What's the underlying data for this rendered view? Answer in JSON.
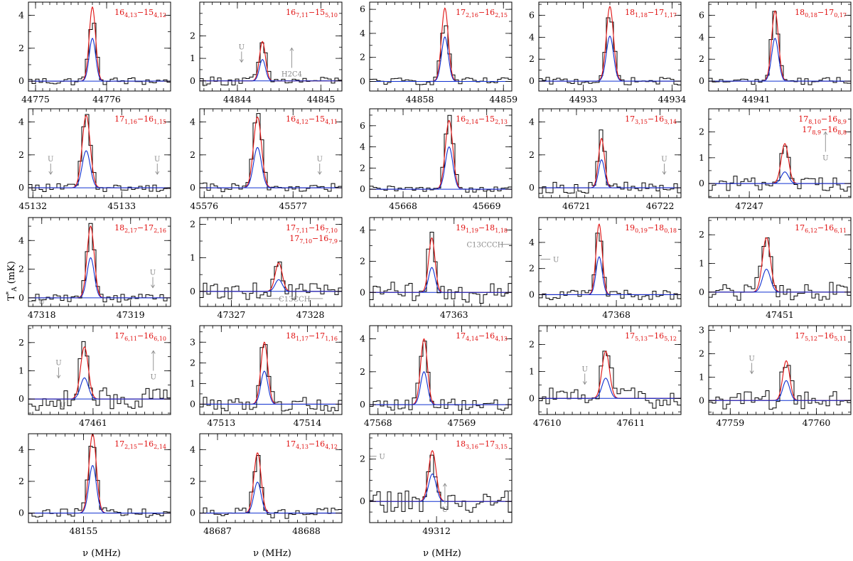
{
  "chart_data": {
    "type": "line",
    "ylabel": "T*A (mK)",
    "ylabel_main": "T",
    "ylabel_sup": "*",
    "ylabel_sub": "A",
    "ylabel_unit": " (mK)",
    "xlabel": "ν (MHz)",
    "series_colors": {
      "observed": "#000000",
      "model_red": "#e01010",
      "model_blue": "#1030d0",
      "annotation": "#8a8a8a"
    },
    "panels": [
      {
        "label": "16 4,13 − 15 4,12",
        "rows": [
          "16|4,13|−15|4,12"
        ],
        "center": 44775.8,
        "xmin": 44774.9,
        "xmax": 44776.9,
        "xticks": [
          44775,
          44776
        ],
        "ylim": [
          -0.6,
          4.8
        ],
        "yticks": [
          0,
          2,
          4
        ],
        "peak_red": 4.5,
        "peak_blue": 2.6,
        "peak_obs": 3.8,
        "width": 0.05,
        "noise": 0.25,
        "annotations": []
      },
      {
        "label": "16 7,11 − 15 5,10",
        "rows": [
          "16|7,11|−15|5,10"
        ],
        "center": 44844.3,
        "xmin": 44843.55,
        "xmax": 44845.25,
        "xticks": [
          44844,
          44845
        ],
        "ylim": [
          -0.45,
          3.5
        ],
        "yticks": [
          0,
          1,
          2
        ],
        "peak_red": 1.75,
        "peak_blue": 0.95,
        "peak_obs": 1.7,
        "width": 0.04,
        "noise": 0.2,
        "annotations": [
          {
            "text": "U",
            "x": 44844.05,
            "y": 1.4,
            "dir": "down"
          },
          {
            "text": "U",
            "x": 44843.6,
            "y": -0.25,
            "dir": "none"
          },
          {
            "text": "H2C4",
            "x": 44844.65,
            "y": 0.2,
            "dir": "up"
          }
        ]
      },
      {
        "label": "17 2,16 − 16 2,15",
        "rows": [
          "17|2,16|−16|2,15"
        ],
        "center": 44858.3,
        "xmin": 44857.4,
        "xmax": 44859.1,
        "xticks": [
          44858,
          44859
        ],
        "ylim": [
          -0.8,
          6.6
        ],
        "yticks": [
          0,
          2,
          4,
          6
        ],
        "peak_red": 6.1,
        "peak_blue": 3.7,
        "peak_obs": 5.0,
        "width": 0.045,
        "noise": 0.3,
        "annotations": []
      },
      {
        "label": "18 1,18 − 17 1,17",
        "rows": [
          "18|1,18|−17|1,17"
        ],
        "center": 44933.3,
        "xmin": 44932.5,
        "xmax": 44934.1,
        "xticks": [
          44933,
          44934
        ],
        "ylim": [
          -0.9,
          7.2
        ],
        "yticks": [
          0,
          2,
          4,
          6
        ],
        "peak_red": 6.8,
        "peak_blue": 4.1,
        "peak_obs": 6.0,
        "width": 0.045,
        "noise": 0.35,
        "annotations": []
      },
      {
        "label": "18 0,18 − 17 0,17",
        "rows": [
          "18|0,18|−17|0,17"
        ],
        "center": 44941.2,
        "xmin": 44940.5,
        "xmax": 44942.0,
        "xticks": [
          44941
        ],
        "ylim": [
          -0.9,
          7.2
        ],
        "yticks": [
          0,
          2,
          4,
          6
        ],
        "peak_red": 6.4,
        "peak_blue": 3.9,
        "peak_obs": 6.3,
        "width": 0.04,
        "noise": 0.35,
        "annotations": []
      },
      {
        "label": "17 1,16 − 16 1,15",
        "rows": [
          "17|1,16|−16|1,15"
        ],
        "center": 45132.6,
        "xmin": 45131.95,
        "xmax": 45133.55,
        "xticks": [
          45132,
          45133
        ],
        "ylim": [
          -0.6,
          4.8
        ],
        "yticks": [
          0,
          2,
          4
        ],
        "peak_red": 4.4,
        "peak_blue": 2.25,
        "peak_obs": 4.3,
        "width": 0.05,
        "noise": 0.25,
        "annotations": [
          {
            "text": "U",
            "x": 45132.2,
            "y": 1.6,
            "dir": "down"
          },
          {
            "text": "U",
            "x": 45133.4,
            "y": 1.6,
            "dir": "down"
          }
        ]
      },
      {
        "label": "16 4,12 − 15 4,11",
        "rows": [
          "16|4,12|−15|4,11"
        ],
        "center": 45576.6,
        "xmin": 45575.95,
        "xmax": 45577.55,
        "xticks": [
          45576,
          45577
        ],
        "ylim": [
          -0.6,
          4.8
        ],
        "yticks": [
          0,
          2,
          4
        ],
        "peak_red": 4.3,
        "peak_blue": 2.45,
        "peak_obs": 4.4,
        "width": 0.05,
        "noise": 0.3,
        "annotations": [
          {
            "text": "U",
            "x": 45577.3,
            "y": 1.6,
            "dir": "down"
          }
        ]
      },
      {
        "label": "16 2,14 − 15 2,13",
        "rows": [
          "16|2,14|−15|2,13"
        ],
        "center": 45668.55,
        "xmin": 45667.6,
        "xmax": 45669.3,
        "xticks": [
          45668,
          45669
        ],
        "ylim": [
          -0.8,
          7.6
        ],
        "yticks": [
          0,
          2,
          4,
          6
        ],
        "peak_red": 6.5,
        "peak_blue": 4.0,
        "peak_obs": 7.0,
        "width": 0.05,
        "noise": 0.3,
        "annotations": []
      },
      {
        "label": "17 3,15 − 16 3,14",
        "rows": [
          "17|3,15|−16|3,14"
        ],
        "center": 46721.3,
        "xmin": 46720.55,
        "xmax": 46722.25,
        "xticks": [
          46721,
          46722
        ],
        "ylim": [
          -0.6,
          4.8
        ],
        "yticks": [
          0,
          2,
          4
        ],
        "peak_red": 3.0,
        "peak_blue": 1.7,
        "peak_obs": 3.3,
        "width": 0.04,
        "noise": 0.35,
        "annotations": [
          {
            "text": "U",
            "x": 46722.05,
            "y": 1.6,
            "dir": "split"
          }
        ]
      },
      {
        "label": "17 8,10 − 16 8,9",
        "rows": [
          "17|8,10|−16|8,9",
          "17|8,9|−16|8,8"
        ],
        "center": 47247.35,
        "xmin": 47246.6,
        "xmax": 47248.0,
        "xticks": [
          47247
        ],
        "ylim": [
          -0.55,
          2.9
        ],
        "yticks": [
          0,
          1,
          2
        ],
        "peak_red": 1.55,
        "peak_blue": 0.45,
        "peak_obs": 1.5,
        "width": 0.04,
        "noise": 0.3,
        "annotations": [
          {
            "text": "U",
            "x": 47247.75,
            "y": 0.9,
            "dir": "up"
          }
        ]
      },
      {
        "label": "18 2,17 − 17 2,16",
        "rows": [
          "18|2,17|−17|2,16"
        ],
        "center": 47318.55,
        "xmin": 47317.85,
        "xmax": 47319.45,
        "xticks": [
          47318,
          47319
        ],
        "ylim": [
          -0.6,
          5.6
        ],
        "yticks": [
          0,
          2,
          4
        ],
        "peak_red": 5.0,
        "peak_blue": 2.8,
        "peak_obs": 5.0,
        "width": 0.045,
        "noise": 0.3,
        "annotations": [
          {
            "text": "U",
            "x": 47319.25,
            "y": 1.6,
            "dir": "down"
          },
          {
            "text": "U",
            "x": 47318.0,
            "y": -0.45,
            "dir": "left"
          }
        ]
      },
      {
        "label": "17 7,11 − 16 7,10",
        "rows": [
          "17|7,11|−16|7,10",
          "17|7,10|−16|7,9"
        ],
        "center": 47327.6,
        "xmin": 47326.6,
        "xmax": 47328.4,
        "xticks": [
          47327,
          47328
        ],
        "ylim": [
          -0.45,
          2.2
        ],
        "yticks": [
          0,
          1,
          2
        ],
        "peak_red": 0.85,
        "peak_blue": 0.35,
        "peak_obs": 0.85,
        "width": 0.05,
        "noise": 0.25,
        "annotations": [
          {
            "text": "C13CCH",
            "x": 47327.8,
            "y": -0.3,
            "dir": "bracket"
          }
        ]
      },
      {
        "label": "19 1,19 − 18 1,18",
        "rows": [
          "19|1,19|−18|1,18"
        ],
        "center": 47362.75,
        "xmin": 47362.05,
        "xmax": 47363.65,
        "xticks": [
          47363
        ],
        "ylim": [
          -0.9,
          4.8
        ],
        "yticks": [
          0,
          2,
          4
        ],
        "peak_red": 3.5,
        "peak_blue": 1.6,
        "peak_obs": 3.5,
        "width": 0.04,
        "noise": 0.7,
        "annotations": [
          {
            "text": "C13CCCH",
            "x": 47363.35,
            "y": 2.9,
            "dir": "right"
          }
        ]
      },
      {
        "label": "19 0,19 − 18 0,18",
        "rows": [
          "19|0,19|−18|0,18"
        ],
        "center": 47367.8,
        "xmin": 47367.1,
        "xmax": 47368.75,
        "xticks": [
          47368
        ],
        "ylim": [
          -0.9,
          5.9
        ],
        "yticks": [
          0,
          2,
          4
        ],
        "peak_red": 5.4,
        "peak_blue": 2.9,
        "peak_obs": 5.0,
        "width": 0.04,
        "noise": 0.4,
        "annotations": [
          {
            "text": "U",
            "x": 47367.3,
            "y": 2.5,
            "dir": "left"
          }
        ]
      },
      {
        "label": "17 6,12 − 16 6,11",
        "rows": [
          "17|6,12|−16|6,11"
        ],
        "center": 47450.85,
        "xmin": 47450.2,
        "xmax": 47451.8,
        "xticks": [
          47451
        ],
        "ylim": [
          -0.5,
          2.6
        ],
        "yticks": [
          0,
          1,
          2
        ],
        "peak_red": 1.9,
        "peak_blue": 0.8,
        "peak_obs": 1.8,
        "width": 0.05,
        "noise": 0.35,
        "annotations": []
      },
      {
        "label": "17 6,11 − 16 6,10",
        "rows": [
          "17|6,11|−16|6,10"
        ],
        "center": 47460.9,
        "xmin": 47460.25,
        "xmax": 47461.9,
        "xticks": [
          47461
        ],
        "ylim": [
          -0.55,
          2.6
        ],
        "yticks": [
          0,
          1,
          2
        ],
        "peak_red": 1.85,
        "peak_blue": 0.75,
        "peak_obs": 1.8,
        "width": 0.05,
        "noise": 0.4,
        "annotations": [
          {
            "text": "U",
            "x": 47460.6,
            "y": 1.2,
            "dir": "down"
          },
          {
            "text": "U",
            "x": 47460.65,
            "y": -0.3,
            "dir": "none"
          },
          {
            "text": "U",
            "x": 47461.7,
            "y": 0.7,
            "dir": "up"
          }
        ]
      },
      {
        "label": "18 1,17 − 17 1,16",
        "rows": [
          "18|1,17|−17|1,16"
        ],
        "center": 47513.5,
        "xmin": 47512.75,
        "xmax": 47514.4,
        "xticks": [
          47513,
          47514
        ],
        "ylim": [
          -0.5,
          3.8
        ],
        "yticks": [
          0,
          1,
          2,
          3
        ],
        "peak_red": 3.0,
        "peak_blue": 1.6,
        "peak_obs": 3.2,
        "width": 0.045,
        "noise": 0.35,
        "annotations": []
      },
      {
        "label": "17 4,14 − 16 4,13",
        "rows": [
          "17|4,14|−16|4,13"
        ],
        "center": 47568.55,
        "xmin": 47567.9,
        "xmax": 47569.6,
        "xticks": [
          47568,
          47569
        ],
        "ylim": [
          -0.6,
          4.8
        ],
        "yticks": [
          0,
          2,
          4
        ],
        "peak_red": 4.0,
        "peak_blue": 2.0,
        "peak_obs": 4.1,
        "width": 0.045,
        "noise": 0.35,
        "annotations": []
      },
      {
        "label": "17 5,13 − 16 5,12",
        "rows": [
          "17|5,13|−16|5,12"
        ],
        "center": 47610.7,
        "xmin": 47609.9,
        "xmax": 47611.6,
        "xticks": [
          47610,
          47611
        ],
        "ylim": [
          -0.6,
          2.7
        ],
        "yticks": [
          0,
          1,
          2
        ],
        "peak_red": 1.75,
        "peak_blue": 0.75,
        "peak_obs": 2.1,
        "width": 0.05,
        "noise": 0.4,
        "annotations": [
          {
            "text": "U",
            "x": 47610.45,
            "y": 1.0,
            "dir": "down"
          }
        ]
      },
      {
        "label": "17 5,12 − 16 5,11",
        "rows": [
          "17|5,12|−16|5,11"
        ],
        "center": 47759.65,
        "xmin": 47758.75,
        "xmax": 47760.4,
        "xticks": [
          47759,
          47760
        ],
        "ylim": [
          -0.6,
          3.2
        ],
        "yticks": [
          0,
          1,
          2,
          3
        ],
        "peak_red": 1.7,
        "peak_blue": 0.85,
        "peak_obs": 1.6,
        "width": 0.045,
        "noise": 0.45,
        "annotations": [
          {
            "text": "U",
            "x": 47759.25,
            "y": 1.7,
            "dir": "down"
          }
        ]
      },
      {
        "label": "17 2,15 − 16 2,14",
        "rows": [
          "17|2,15|−16|2,14"
        ],
        "center": 48155.1,
        "xmin": 48154.4,
        "xmax": 48155.95,
        "xticks": [
          48155
        ],
        "ylim": [
          -0.6,
          5.0
        ],
        "yticks": [
          0,
          2,
          4
        ],
        "peak_red": 5.0,
        "peak_blue": 3.0,
        "peak_obs": 4.7,
        "width": 0.045,
        "noise": 0.3,
        "annotations": []
      },
      {
        "label": "17 4,13 − 16 4,12",
        "rows": [
          "17|4,13|−16|4,12"
        ],
        "center": 48687.45,
        "xmin": 48686.8,
        "xmax": 48688.4,
        "xticks": [
          48687,
          48688
        ],
        "ylim": [
          -0.6,
          5.0
        ],
        "yticks": [
          0,
          2,
          4
        ],
        "peak_red": 3.8,
        "peak_blue": 1.95,
        "peak_obs": 3.6,
        "width": 0.045,
        "noise": 0.35,
        "annotations": []
      },
      {
        "label": "18 3,16 − 17 3,15",
        "rows": [
          "18|3,16|−17|3,15"
        ],
        "center": 49311.95,
        "xmin": 49311.2,
        "xmax": 49312.9,
        "xticks": [
          49312
        ],
        "ylim": [
          -1.0,
          3.2
        ],
        "yticks": [
          0,
          2
        ],
        "peak_red": 2.4,
        "peak_blue": 1.3,
        "peak_obs": 2.2,
        "width": 0.05,
        "noise": 0.55,
        "annotations": [
          {
            "text": "U",
            "x": 49311.35,
            "y": 2.0,
            "dir": "left"
          },
          {
            "text": "U",
            "x": 49312.1,
            "y": -0.5,
            "dir": "up"
          }
        ]
      }
    ]
  }
}
